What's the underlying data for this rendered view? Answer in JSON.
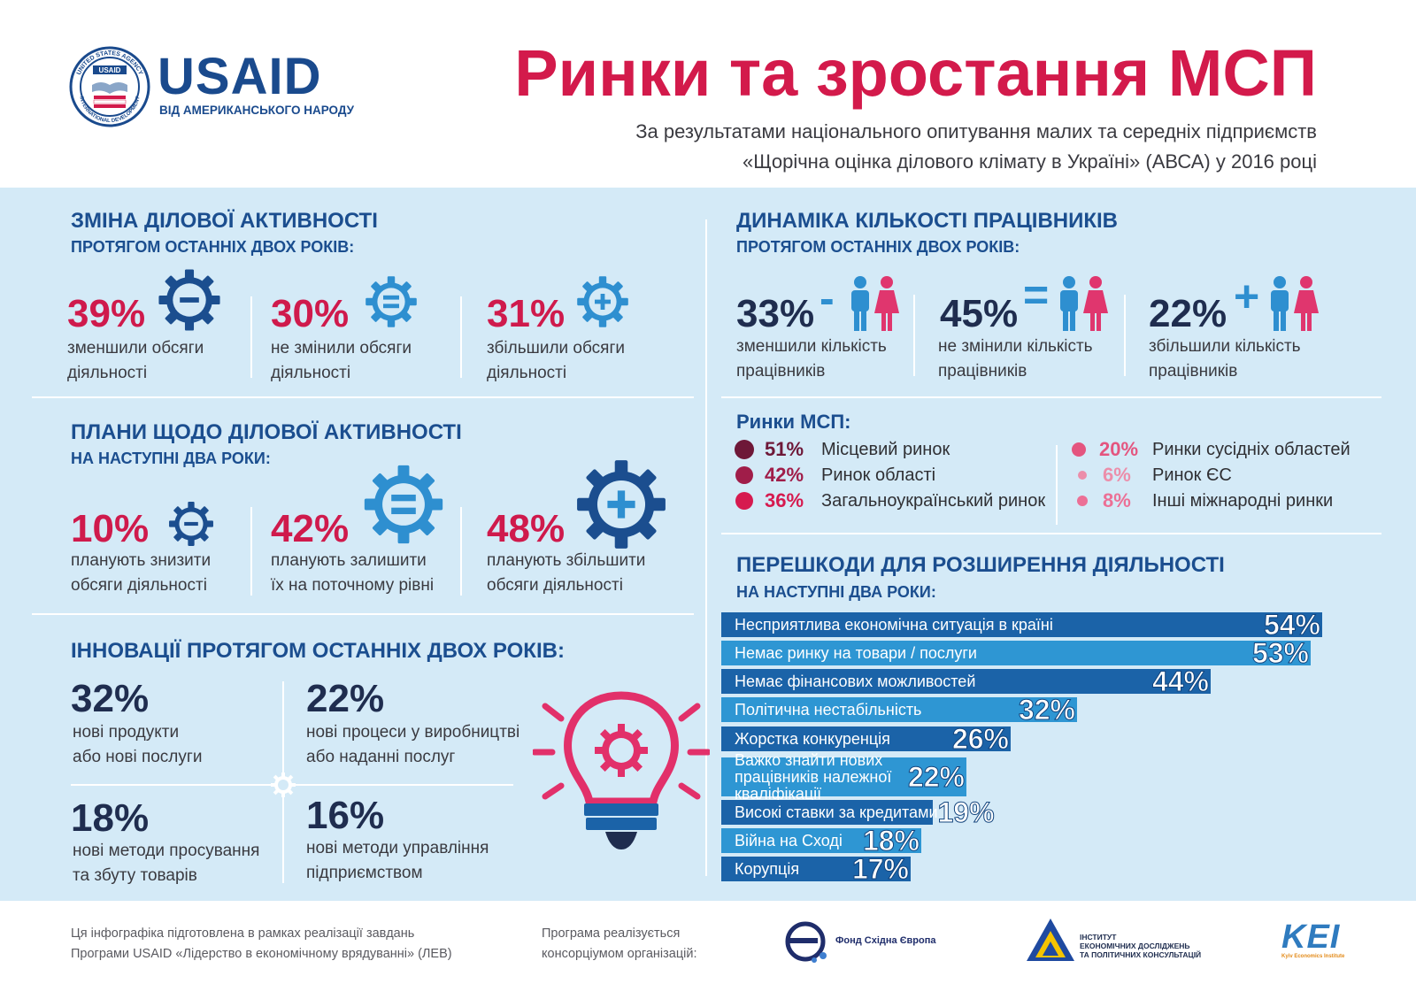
{
  "header": {
    "logo_word": "USAID",
    "logo_tagline": "ВІД АМЕРИКАНСЬКОГО НАРОДУ",
    "seal_text_top": "UNITED STATES AGENCY",
    "seal_text_bottom": "INTERNATIONAL DEVELOPMENT",
    "seal_center": "USAID",
    "title": "Ринки та зростання МСП",
    "subtitle_1": "За результатами національного опитування малих та середніх підприємств",
    "subtitle_2": "«Щорічна оцінка ділового клімату в Україні» (АВСА) у 2016 році"
  },
  "activity_change": {
    "title": "ЗМІНА ДІЛОВОЇ АКТИВНОСТІ",
    "subtitle": "ПРОТЯГОМ ОСТАННІХ ДВОХ РОКІВ:",
    "items": [
      {
        "value": "39%",
        "line1": "зменшили обсяги",
        "line2": "діяльності",
        "icon": "gear-minus-icon"
      },
      {
        "value": "30%",
        "line1": "не змінили обсяги",
        "line2": "діяльності",
        "icon": "gear-equal-icon"
      },
      {
        "value": "31%",
        "line1": "збільшили обсяги",
        "line2": "діяльності",
        "icon": "gear-plus-icon"
      }
    ]
  },
  "activity_plans": {
    "title": "ПЛАНИ ЩОДО ДІЛОВОЇ АКТИВНОСТІ",
    "subtitle": "НА НАСТУПНІ ДВА РОКИ:",
    "items": [
      {
        "value": "10%",
        "line1": "планують знизити",
        "line2": "обсяги діяльності",
        "icon": "gear-minus-icon"
      },
      {
        "value": "42%",
        "line1": "планують залишити",
        "line2": "їх на поточному рівні",
        "icon": "gear-equal-icon"
      },
      {
        "value": "48%",
        "line1": "планують збільшити",
        "line2": "обсяги діяльності",
        "icon": "gear-plus-icon"
      }
    ]
  },
  "innovations": {
    "title": "ІННОВАЦІЇ ПРОТЯГОМ ОСТАННІХ ДВОХ РОКІВ:",
    "items": [
      {
        "value": "32%",
        "line1": "нові продукти",
        "line2": "або нові послуги"
      },
      {
        "value": "22%",
        "line1": "нові процеси у виробництві",
        "line2": "або наданні послуг"
      },
      {
        "value": "18%",
        "line1": "нові методи просування",
        "line2": "та збуту товарів"
      },
      {
        "value": "16%",
        "line1": "нові методи управління",
        "line2": "підприємством"
      }
    ],
    "icon": "lightbulb-gear-icon"
  },
  "employees": {
    "title": "ДИНАМІКА КІЛЬКОСТІ ПРАЦІВНИКІВ",
    "subtitle": "ПРОТЯГОМ ОСТАННІХ ДВОХ РОКІВ:",
    "items": [
      {
        "value": "33%",
        "sign": "-",
        "line1": "зменшили кількість",
        "line2": "працівників"
      },
      {
        "value": "45%",
        "sign": "=",
        "line1": "не змінили кількість",
        "line2": "працівників"
      },
      {
        "value": "22%",
        "sign": "+",
        "line1": "збільшили кількість",
        "line2": "працівників"
      }
    ]
  },
  "markets": {
    "title": "Ринки МСП:",
    "items": [
      {
        "value": "51%",
        "label": "Місцевий ринок",
        "color": "#6e1838"
      },
      {
        "value": "42%",
        "label": "Ринок області",
        "color": "#a01d49"
      },
      {
        "value": "36%",
        "label": "Загальноукраїнський ринок",
        "color": "#d61a4f"
      },
      {
        "value": "20%",
        "label": "Ринки сусідніх областей",
        "color": "#e4557f"
      },
      {
        "value": "6%",
        "label": "Ринок ЄС",
        "color": "#ec8eaa"
      },
      {
        "value": "8%",
        "label": "Інші міжнародні ринки",
        "color": "#ec7096"
      }
    ]
  },
  "obstacles": {
    "title": "ПЕРЕШКОДИ ДЛЯ РОЗШИРЕННЯ ДІЯЛЬНОСТІ",
    "subtitle": "НА НАСТУПНІ ДВА РОКИ:"
  },
  "chart_data": {
    "type": "bar",
    "orientation": "horizontal",
    "categories": [
      "Несприятлива економічна ситуація в країні",
      "Немає ринку на товари / послуги",
      "Немає фінансових можливостей",
      "Політична нестабільність",
      "Жорстка конкуренція",
      "Важко знайти нових працівників належної кваліфікації",
      "Високі ставки за кредитами",
      "Війна на Сході",
      "Корупція"
    ],
    "category_lines": [
      [
        "Несприятлива економічна ситуація в країні"
      ],
      [
        "Немає ринку на товари / послуги"
      ],
      [
        "Немає фінансових можливостей"
      ],
      [
        "Політична нестабільність"
      ],
      [
        "Жорстка конкуренція"
      ],
      [
        "Важко знайти нових",
        "працівників належної кваліфікації"
      ],
      [
        "Високі ставки за кредитами"
      ],
      [
        "Війна на Сході"
      ],
      [
        "Корупція"
      ]
    ],
    "values": [
      54,
      53,
      44,
      32,
      26,
      22,
      19,
      18,
      17
    ],
    "value_labels": [
      "54%",
      "53%",
      "44%",
      "32%",
      "26%",
      "22%",
      "19%",
      "18%",
      "17%"
    ],
    "unit": "%",
    "colors": [
      "#1b63a8",
      "#2e96d3"
    ]
  },
  "footer": {
    "note_line1": "Ця інфографіка підготовлена в рамках реалізації завдань",
    "note_line2": "Програми USAID «Лідерство в економічному врядуванні» (ЛЕВ)",
    "consortium_line1": "Програма реалізується",
    "consortium_line2": "консорціумом організацій:",
    "partner1": "Фонд Східна Європа",
    "partner2_line1": "ІНСТИТУТ",
    "partner2_line2": "ЕКОНОМІЧНИХ ДОСЛІДЖЕНЬ",
    "partner2_line3": "ТА ПОЛІТИЧНИХ КОНСУЛЬТАЦІЙ",
    "partner3": "KEI",
    "partner3_sub": "Kyiv Economics Institute"
  }
}
